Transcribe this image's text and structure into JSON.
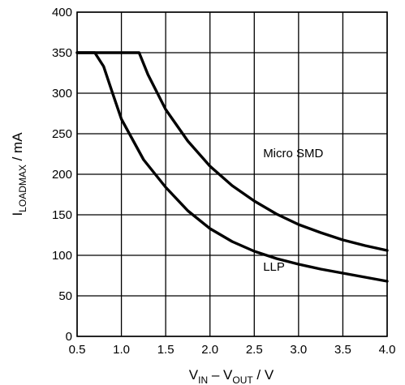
{
  "chart_data": {
    "type": "line",
    "xlabel": {
      "main": "V",
      "sub1": "IN",
      "mid": " – V",
      "sub2": "OUT",
      "tail": " / V"
    },
    "ylabel": {
      "main": "I",
      "sub": "LOADMAX",
      "tail": " / mA"
    },
    "xlim": [
      0.5,
      4.0
    ],
    "ylim": [
      0,
      400
    ],
    "xticks": [
      "0.5",
      "1.0",
      "1.5",
      "2.0",
      "2.5",
      "3.0",
      "3.5",
      "4.0"
    ],
    "yticks": [
      "0",
      "50",
      "100",
      "150",
      "200",
      "250",
      "300",
      "350",
      "400"
    ],
    "grid": true,
    "series": [
      {
        "name": "Micro SMD",
        "x": [
          0.5,
          1.2,
          1.3,
          1.5,
          1.75,
          2.0,
          2.25,
          2.5,
          2.75,
          3.0,
          3.25,
          3.5,
          3.75,
          4.0
        ],
        "y": [
          350,
          350,
          323,
          280,
          241,
          210,
          186,
          167,
          151,
          138,
          128,
          119,
          112,
          106
        ]
      },
      {
        "name": "LLP",
        "x": [
          0.5,
          0.7,
          0.8,
          0.9,
          1.0,
          1.25,
          1.5,
          1.75,
          2.0,
          2.25,
          2.5,
          2.75,
          3.0,
          3.25,
          3.5,
          3.75,
          4.0
        ],
        "y": [
          350,
          350,
          333,
          300,
          268,
          218,
          184,
          155,
          133,
          117,
          105,
          96,
          89,
          83,
          78,
          73,
          68
        ]
      }
    ],
    "annotations": [
      {
        "text": "Micro SMD",
        "x": 2.6,
        "y": 221
      },
      {
        "text": "LLP",
        "x": 2.6,
        "y": 81
      }
    ]
  }
}
